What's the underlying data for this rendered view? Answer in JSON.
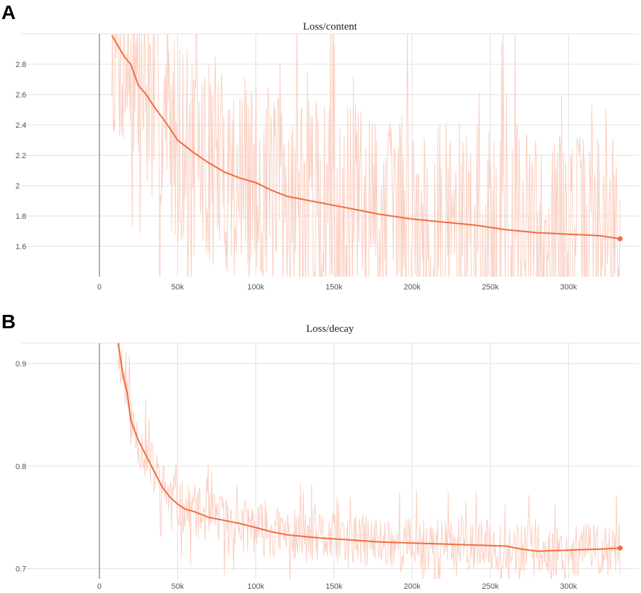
{
  "panels": [
    {
      "letter": "A"
    },
    {
      "letter": "B"
    }
  ],
  "chart_data": [
    {
      "type": "line",
      "title": "Loss/content",
      "xlabel": "",
      "ylabel": "",
      "xlim": [
        -50000,
        345000
      ],
      "ylim": [
        1.4,
        3.0
      ],
      "x_ticks": [
        0,
        50000,
        100000,
        150000,
        200000,
        250000,
        300000
      ],
      "x_tick_labels": [
        "0",
        "50k",
        "100k",
        "150k",
        "200k",
        "250k",
        "300k"
      ],
      "y_ticks": [
        1.6,
        1.8,
        2.0,
        2.2,
        2.4,
        2.6,
        2.8
      ],
      "y_tick_labels": [
        "1.6",
        "1.8",
        "2",
        "2.2",
        "2.4",
        "2.6",
        "2.8"
      ],
      "grid": true,
      "color_smoothed": "#f26a3d",
      "color_raw": "#fbcfc1",
      "series": [
        {
          "x": [
            8000,
            12000,
            16000,
            20000,
            25000,
            30000,
            35000,
            40000,
            45000,
            50000,
            60000,
            70000,
            80000,
            90000,
            100000,
            110000,
            120000,
            140000,
            160000,
            180000,
            200000,
            220000,
            240000,
            260000,
            280000,
            300000,
            320000,
            333000
          ],
          "y": [
            2.99,
            2.92,
            2.85,
            2.8,
            2.66,
            2.6,
            2.52,
            2.45,
            2.38,
            2.3,
            2.22,
            2.15,
            2.09,
            2.05,
            2.02,
            1.97,
            1.93,
            1.89,
            1.85,
            1.81,
            1.78,
            1.76,
            1.74,
            1.71,
            1.69,
            1.68,
            1.67,
            1.65
          ]
        }
      ]
    },
    {
      "type": "line",
      "title": "Loss/decay",
      "xlabel": "",
      "ylabel": "",
      "xlim": [
        -50000,
        345000
      ],
      "ylim": [
        0.69,
        0.92
      ],
      "x_ticks": [
        0,
        50000,
        100000,
        150000,
        200000,
        250000,
        300000
      ],
      "x_tick_labels": [
        "0",
        "50k",
        "100k",
        "150k",
        "200k",
        "250k",
        "300k"
      ],
      "y_ticks": [
        0.7,
        0.8,
        0.9
      ],
      "y_tick_labels": [
        "0.7",
        "0.8",
        "0.9"
      ],
      "grid": true,
      "color_smoothed": "#f26a3d",
      "color_raw": "#fbcfc1",
      "series": [
        {
          "x": [
            12000,
            15000,
            18000,
            20000,
            25000,
            30000,
            35000,
            40000,
            45000,
            50000,
            55000,
            60000,
            65000,
            70000,
            80000,
            90000,
            100000,
            110000,
            120000,
            140000,
            160000,
            180000,
            200000,
            220000,
            240000,
            260000,
            270000,
            280000,
            300000,
            320000,
            333000
          ],
          "y": [
            0.92,
            0.89,
            0.87,
            0.845,
            0.825,
            0.81,
            0.795,
            0.78,
            0.77,
            0.763,
            0.758,
            0.756,
            0.753,
            0.75,
            0.747,
            0.744,
            0.74,
            0.736,
            0.733,
            0.73,
            0.728,
            0.726,
            0.725,
            0.724,
            0.723,
            0.722,
            0.719,
            0.717,
            0.718,
            0.719,
            0.72
          ]
        }
      ]
    }
  ]
}
